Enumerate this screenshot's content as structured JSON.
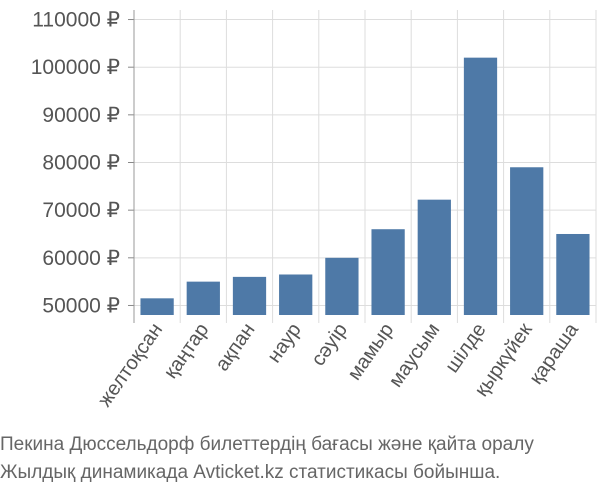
{
  "chart_data": {
    "type": "bar",
    "categories": [
      "желтоқсан",
      "қаңтар",
      "ақпан",
      "наур",
      "сәуір",
      "мамыр",
      "маусым",
      "шілде",
      "қыркүйек",
      "қараша"
    ],
    "values": [
      51500,
      55000,
      56000,
      56500,
      60000,
      66000,
      72200,
      102000,
      79000,
      65000
    ],
    "ylim": [
      48000,
      112000
    ],
    "yticks": [
      50000,
      60000,
      70000,
      80000,
      90000,
      100000,
      110000
    ],
    "tick_labels": [
      "50000 ₽",
      "60000 ₽",
      "70000 ₽",
      "80000 ₽",
      "90000 ₽",
      "100000 ₽",
      "110000 ₽"
    ],
    "grid": true,
    "bar_color": "#4e79a7",
    "grid_color": "#dddddd"
  },
  "caption": {
    "line1": "Пекина Дюссельдорф билеттердің бағасы және қайта оралу",
    "line2": "Жылдық динамикада Avticket.kz статистикасы бойынша."
  }
}
